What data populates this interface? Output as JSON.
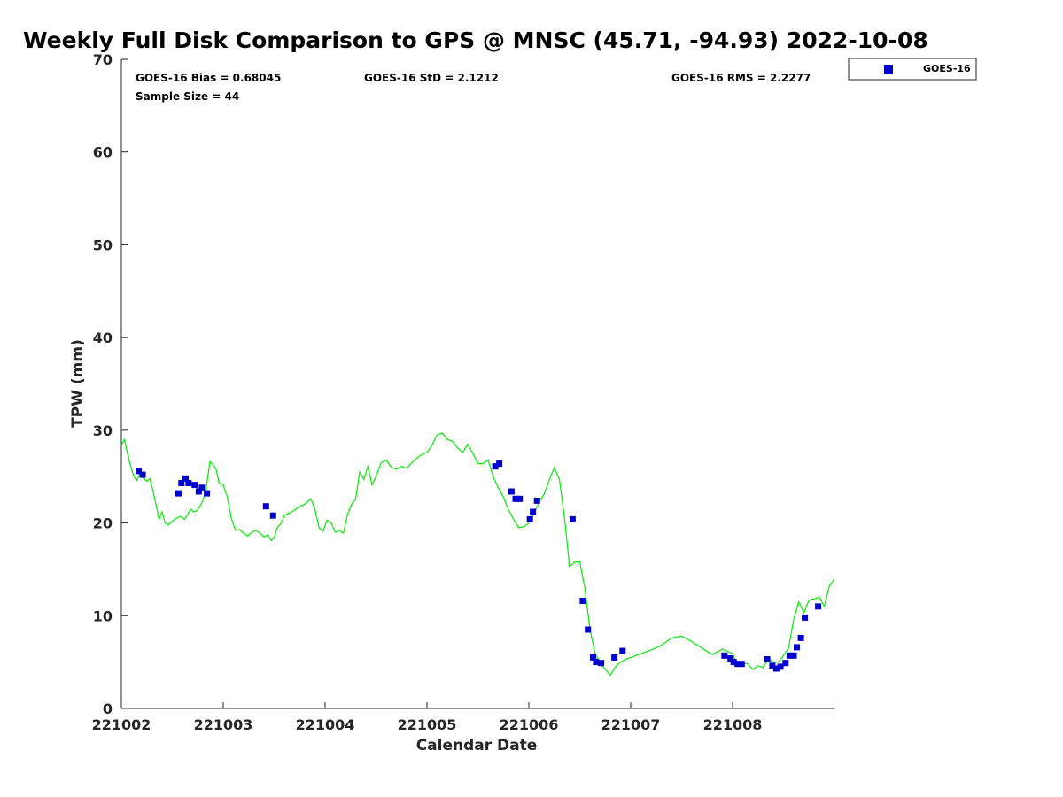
{
  "chart_data": {
    "type": "scatter",
    "title": "Weekly Full Disk Comparison to GPS @ MNSC (45.71, -94.93) 2022-10-08",
    "xlabel": "Calendar Date",
    "ylabel": "TPW (mm)",
    "xlim": [
      221002,
      221009
    ],
    "ylim": [
      0,
      70
    ],
    "x_ticks": [
      221002,
      221003,
      221004,
      221005,
      221006,
      221007,
      221008
    ],
    "x_tick_labels": [
      "221002",
      "221003",
      "221004",
      "221005",
      "221006",
      "221007",
      "221008"
    ],
    "y_ticks": [
      0,
      10,
      20,
      30,
      40,
      50,
      60,
      70
    ],
    "y_tick_labels": [
      "0",
      "10",
      "20",
      "30",
      "40",
      "50",
      "60",
      "70"
    ],
    "grid": false,
    "legend_position": "top-right-outside",
    "stats": {
      "bias": "GOES-16 Bias = 0.68045",
      "std": "GOES-16 StD = 2.1212",
      "rms": "GOES-16 RMS = 2.2277",
      "sample_size": "Sample Size = 44"
    },
    "series": [
      {
        "name": "GOES-16",
        "kind": "markers",
        "color": "#0000cc",
        "x": [
          221002.17,
          221002.21,
          221002.56,
          221002.59,
          221002.63,
          221002.66,
          221002.72,
          221002.76,
          221002.79,
          221002.84,
          221003.42,
          221003.49,
          221005.67,
          221005.71,
          221005.83,
          221005.87,
          221005.91,
          221006.01,
          221006.04,
          221006.08,
          221006.43,
          221006.53,
          221006.58,
          221006.63,
          221006.66,
          221006.71,
          221006.84,
          221006.92,
          221007.92,
          221007.98,
          221008.01,
          221008.05,
          221008.09,
          221008.34,
          221008.39,
          221008.43,
          221008.47,
          221008.52,
          221008.56,
          221008.6,
          221008.63,
          221008.67,
          221008.71,
          221008.84
        ],
        "y": [
          25.6,
          25.2,
          23.2,
          24.3,
          24.8,
          24.3,
          24.1,
          23.4,
          23.8,
          23.2,
          21.8,
          20.8,
          26.1,
          26.4,
          23.4,
          22.6,
          22.6,
          20.4,
          21.2,
          22.4,
          20.4,
          11.6,
          8.5,
          5.5,
          5.0,
          4.9,
          5.5,
          6.2,
          5.7,
          5.4,
          5.0,
          4.8,
          4.8,
          5.3,
          4.6,
          4.3,
          4.5,
          4.9,
          5.7,
          5.7,
          6.6,
          7.6,
          9.8,
          11.0
        ]
      },
      {
        "name": "",
        "kind": "line",
        "color": "#00ee00",
        "x": [
          221002.0,
          221002.03,
          221002.06,
          221002.09,
          221002.12,
          221002.15,
          221002.18,
          221002.22,
          221002.25,
          221002.28,
          221002.31,
          221002.34,
          221002.37,
          221002.4,
          221002.43,
          221002.46,
          221002.5,
          221002.54,
          221002.58,
          221002.62,
          221002.65,
          221002.68,
          221002.71,
          221002.74,
          221002.77,
          221002.8,
          221002.83,
          221002.87,
          221002.9,
          221002.93,
          221002.96,
          221003.0,
          221003.04,
          221003.08,
          221003.12,
          221003.16,
          221003.2,
          221003.24,
          221003.28,
          221003.32,
          221003.36,
          221003.4,
          221003.44,
          221003.47,
          221003.5,
          221003.53,
          221003.57,
          221003.6,
          221003.63,
          221003.66,
          221003.7,
          221003.74,
          221003.78,
          221003.82,
          221003.86,
          221003.9,
          221003.94,
          221003.98,
          221004.02,
          221004.06,
          221004.1,
          221004.14,
          221004.18,
          221004.22,
          221004.26,
          221004.3,
          221004.34,
          221004.38,
          221004.42,
          221004.46,
          221004.5,
          221004.55,
          221004.6,
          221004.65,
          221004.7,
          221004.75,
          221004.8,
          221004.85,
          221004.9,
          221004.95,
          221005.0,
          221005.05,
          221005.1,
          221005.15,
          221005.2,
          221005.25,
          221005.3,
          221005.35,
          221005.4,
          221005.45,
          221005.5,
          221005.55,
          221005.6,
          221005.65,
          221005.7,
          221005.75,
          221005.8,
          221005.85,
          221005.9,
          221005.95,
          221006.0,
          221006.05,
          221006.1,
          221006.15,
          221006.2,
          221006.25,
          221006.3,
          221006.35,
          221006.4,
          221006.45,
          221006.5,
          221006.55,
          221006.6,
          221006.65,
          221006.7,
          221006.75,
          221006.8,
          221006.85,
          221006.9,
          221006.95,
          221007.0,
          221007.1,
          221007.2,
          221007.3,
          221007.4,
          221007.5,
          221007.6,
          221007.7,
          221007.8,
          221007.9,
          221008.0,
          221008.05,
          221008.1,
          221008.15,
          221008.2,
          221008.25,
          221008.3,
          221008.35,
          221008.4,
          221008.45,
          221008.5,
          221008.55,
          221008.6,
          221008.65,
          221008.7,
          221008.75,
          221008.8,
          221008.85,
          221008.9,
          221008.95,
          221009.0
        ],
        "y": [
          28.4,
          29.0,
          27.5,
          26.2,
          25.1,
          24.6,
          25.2,
          24.8,
          24.5,
          24.8,
          23.5,
          22.0,
          20.4,
          21.2,
          20.0,
          19.8,
          20.2,
          20.5,
          20.7,
          20.4,
          20.9,
          21.5,
          21.2,
          21.3,
          21.8,
          22.4,
          23.5,
          26.6,
          26.3,
          25.8,
          24.3,
          24.1,
          22.8,
          20.5,
          19.2,
          19.3,
          18.9,
          18.6,
          19.0,
          19.2,
          18.9,
          18.5,
          18.7,
          18.1,
          18.4,
          19.5,
          20.0,
          20.8,
          21.0,
          21.1,
          21.4,
          21.7,
          21.9,
          22.2,
          22.6,
          21.5,
          19.5,
          19.1,
          20.3,
          20.0,
          19.0,
          19.2,
          18.9,
          20.9,
          22.0,
          22.6,
          25.5,
          24.7,
          26.1,
          24.1,
          25.0,
          26.5,
          26.8,
          26.0,
          25.8,
          26.1,
          25.9,
          26.5,
          27.0,
          27.4,
          27.6,
          28.4,
          29.5,
          29.7,
          29.0,
          28.8,
          28.1,
          27.6,
          28.5,
          27.5,
          26.4,
          26.4,
          26.8,
          25.0,
          23.8,
          22.8,
          21.4,
          20.4,
          19.5,
          19.6,
          20.0,
          21.0,
          22.2,
          23.1,
          24.6,
          26.0,
          24.7,
          20.5,
          15.3,
          15.8,
          15.8,
          13.0,
          8.5,
          6.0,
          4.8,
          4.2,
          3.6,
          4.5,
          5.0,
          5.3,
          5.5,
          5.9,
          6.3,
          6.8,
          7.6,
          7.8,
          7.2,
          6.5,
          5.8,
          6.4,
          5.9,
          4.6,
          4.9,
          4.8,
          4.2,
          4.6,
          4.4,
          5.4,
          5.0,
          5.0,
          5.7,
          6.5,
          9.6,
          11.5,
          10.3,
          11.7,
          11.8,
          12.0,
          11.0,
          13.2,
          14.0
        ]
      }
    ]
  },
  "legend": {
    "entries": [
      {
        "label": "GOES-16",
        "color": "#0000cc",
        "marker": "square"
      }
    ]
  }
}
